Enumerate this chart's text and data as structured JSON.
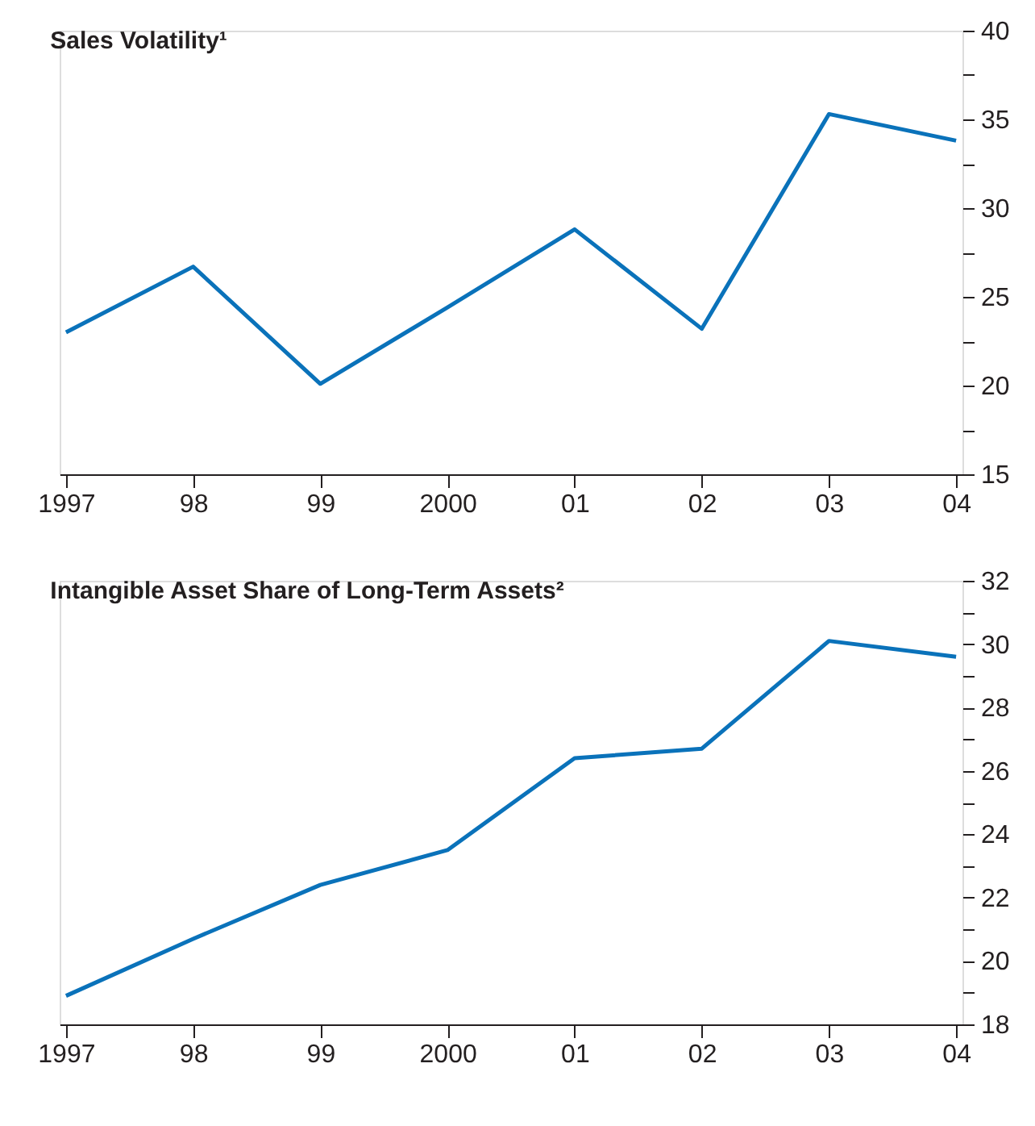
{
  "chart_data": [
    {
      "type": "line",
      "title": "Sales Volatility¹",
      "categories": [
        "1997",
        "98",
        "99",
        "2000",
        "01",
        "02",
        "03",
        "04"
      ],
      "series": [
        {
          "color": "#0a72ba",
          "values": [
            23.0,
            26.7,
            20.1,
            24.4,
            28.8,
            23.2,
            35.3,
            33.8
          ]
        }
      ],
      "ylim": [
        15,
        40
      ],
      "yticks": [
        15,
        {
          "value": 17.5,
          "label": null
        },
        20,
        {
          "value": 22.5,
          "label": null
        },
        25,
        {
          "value": 27.5,
          "label": null
        },
        30,
        {
          "value": 32.5,
          "label": null
        },
        35,
        {
          "value": 37.5,
          "label": null
        },
        40
      ],
      "grid": false,
      "legend": false,
      "marker": "none",
      "line_style": "solid"
    },
    {
      "type": "line",
      "title": "Intangible Asset Share of Long-Term Assets²",
      "categories": [
        "1997",
        "98",
        "99",
        "2000",
        "01",
        "02",
        "03",
        "04"
      ],
      "series": [
        {
          "color": "#0a72ba",
          "values": [
            18.9,
            20.7,
            22.4,
            23.5,
            26.4,
            26.7,
            30.1,
            29.6
          ]
        }
      ],
      "ylim": [
        18,
        32
      ],
      "yticks": [
        18,
        {
          "value": 19,
          "label": null
        },
        20,
        {
          "value": 21,
          "label": null
        },
        22,
        {
          "value": 23,
          "label": null
        },
        24,
        {
          "value": 25,
          "label": null
        },
        26,
        {
          "value": 27,
          "label": null
        },
        28,
        {
          "value": 29,
          "label": null
        },
        30,
        {
          "value": 31,
          "label": null
        },
        32
      ],
      "grid": false,
      "legend": false,
      "marker": "none",
      "line_style": "solid"
    }
  ]
}
